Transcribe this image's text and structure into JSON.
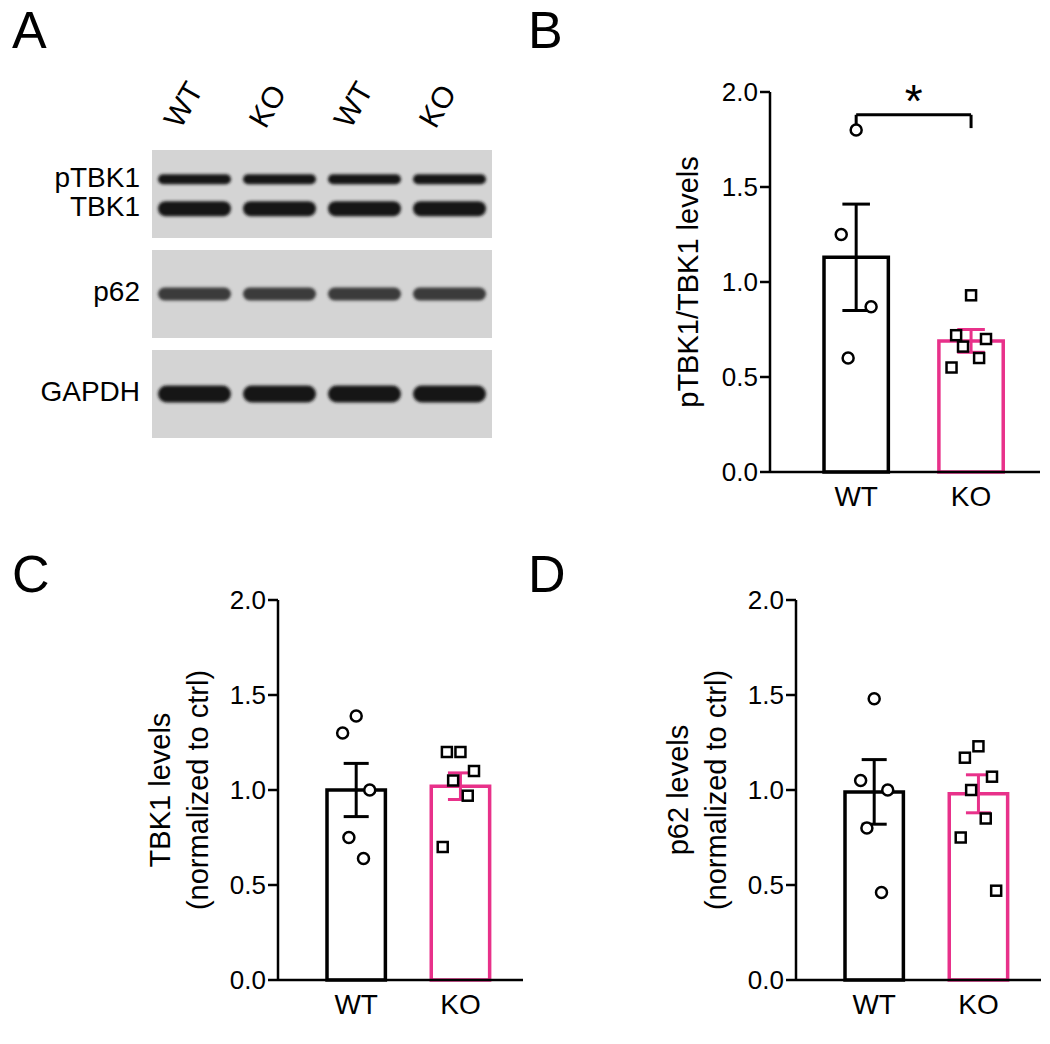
{
  "blot": {
    "title": "A",
    "lanes": [
      "WT",
      "KO",
      "WT",
      "KO"
    ],
    "panels": [
      [
        "pTBK1",
        "TBK1"
      ],
      [
        "p62"
      ],
      [
        "GAPDH"
      ]
    ]
  },
  "chart_data": [
    {
      "type": "bar",
      "title": "B",
      "categories": [
        "WT",
        "KO"
      ],
      "values": [
        1.13,
        0.69
      ],
      "errors": [
        0.28,
        0.06
      ],
      "colors": [
        "#000000",
        "#e8318a"
      ],
      "points": [
        {
          "marker": "circle",
          "values": [
            1.8,
            1.25,
            0.87,
            0.6
          ]
        },
        {
          "marker": "square",
          "values": [
            0.93,
            0.72,
            0.7,
            0.66,
            0.6,
            0.55
          ]
        }
      ],
      "ylabel": [
        "pTBK1/TBK1 levels"
      ],
      "ylim": [
        0,
        2
      ],
      "yticks": [
        {
          "value": 0,
          "label": "0.0"
        },
        0.5,
        {
          "value": 1,
          "label": "1.0"
        },
        1.5,
        {
          "value": 2,
          "label": "2.0"
        }
      ],
      "annotations": [
        {
          "text": "*",
          "from": "WT",
          "to": "KO"
        }
      ]
    },
    {
      "type": "bar",
      "title": "C",
      "categories": [
        "WT",
        "KO"
      ],
      "values": [
        1.0,
        1.02
      ],
      "errors": [
        0.14,
        0.07
      ],
      "colors": [
        "#000000",
        "#e8318a"
      ],
      "points": [
        {
          "marker": "circle",
          "values": [
            1.39,
            1.3,
            1.0,
            0.75,
            0.64
          ]
        },
        {
          "marker": "square",
          "values": [
            1.2,
            1.2,
            1.1,
            1.05,
            0.97,
            0.7
          ]
        }
      ],
      "ylabel": [
        "TBK1 levels",
        "(normalized to ctrl)"
      ],
      "ylim": [
        0,
        2
      ],
      "yticks": [
        {
          "value": 0,
          "label": "0.0"
        },
        0.5,
        {
          "value": 1,
          "label": "1.0"
        },
        1.5,
        {
          "value": 2,
          "label": "2.0"
        }
      ]
    },
    {
      "type": "bar",
      "title": "D",
      "categories": [
        "WT",
        "KO"
      ],
      "values": [
        0.99,
        0.98
      ],
      "errors": [
        0.17,
        0.1
      ],
      "colors": [
        "#000000",
        "#e8318a"
      ],
      "points": [
        {
          "marker": "circle",
          "values": [
            1.48,
            1.05,
            1.0,
            0.8,
            0.46
          ]
        },
        {
          "marker": "square",
          "values": [
            1.23,
            1.17,
            1.07,
            1.0,
            0.85,
            0.75,
            0.47
          ]
        }
      ],
      "ylabel": [
        "p62 levels",
        "(normalized to ctrl)"
      ],
      "ylim": [
        0,
        2
      ],
      "yticks": [
        {
          "value": 0,
          "label": "0.0"
        },
        0.5,
        {
          "value": 1,
          "label": "1.0"
        },
        1.5,
        {
          "value": 2,
          "label": "2.0"
        }
      ]
    }
  ]
}
